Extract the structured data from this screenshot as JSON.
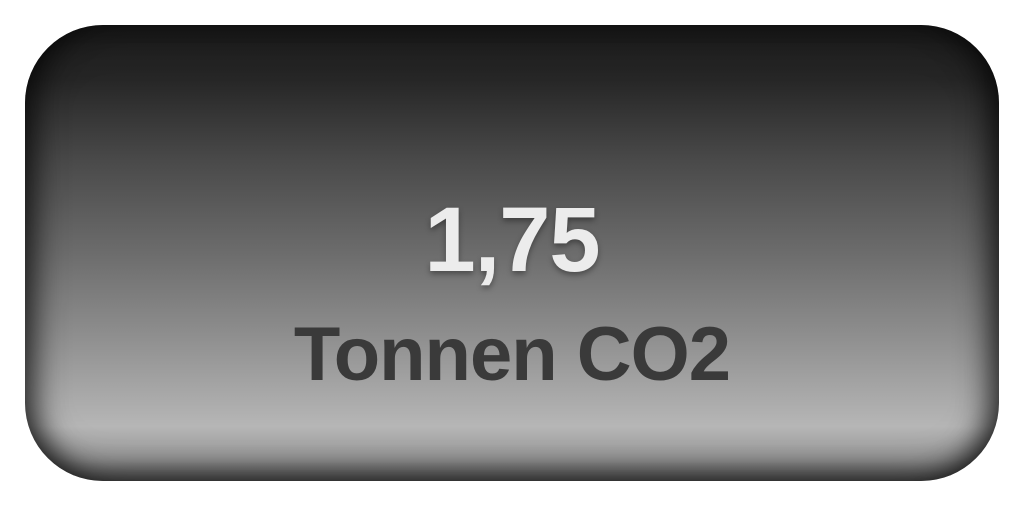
{
  "co2_card": {
    "value": "1,75",
    "unit_label": "Tonnen CO2"
  }
}
